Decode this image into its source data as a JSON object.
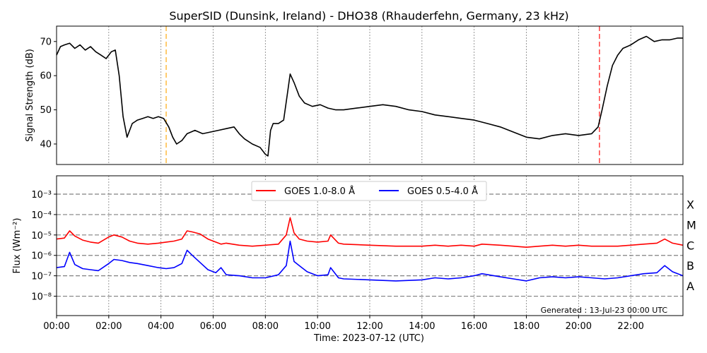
{
  "title": "SuperSID (Dunsink, Ireland) - DHO38 (Rhauderfehn, Germany, 23 kHz)",
  "footer_note": "Generated : 13-Jul-23 00:00 UTC",
  "colors": {
    "signal": "#000000",
    "goes_long": "#ff0000",
    "goes_short": "#0000ff",
    "sunrise_marker": "#ffa500",
    "sunset_marker": "#ff0000",
    "grid": "#808080"
  },
  "chart_data": [
    {
      "type": "line",
      "panel": "signal",
      "ylabel": "Signal Strength (dB)",
      "xlim": [
        0,
        24
      ],
      "ylim": [
        34,
        74.5
      ],
      "yticks": [
        40,
        50,
        60,
        70
      ],
      "xgrid_hours": [
        2,
        4,
        6,
        8,
        10,
        12,
        14,
        16,
        18,
        20,
        22
      ],
      "markers": [
        {
          "x": 4.2,
          "color": "#ffa500",
          "style": "dashed"
        },
        {
          "x": 20.8,
          "color": "#ff0000",
          "style": "dashed"
        }
      ],
      "series": [
        {
          "color": "#000000",
          "x": [
            0,
            0.15,
            0.3,
            0.5,
            0.7,
            0.9,
            1.1,
            1.3,
            1.5,
            1.7,
            1.9,
            2.1,
            2.25,
            2.4,
            2.55,
            2.7,
            2.8,
            2.9,
            3.0,
            3.1,
            3.3,
            3.5,
            3.7,
            3.9,
            4.1,
            4.3,
            4.45,
            4.6,
            4.8,
            5.0,
            5.3,
            5.6,
            5.9,
            6.2,
            6.5,
            6.8,
            7.0,
            7.2,
            7.5,
            7.8,
            8.0,
            8.1,
            8.2,
            8.3,
            8.5,
            8.7,
            8.85,
            8.95,
            9.1,
            9.3,
            9.5,
            9.8,
            10.1,
            10.4,
            10.7,
            11.0,
            11.5,
            12.0,
            12.5,
            13.0,
            13.5,
            14.0,
            14.5,
            15.0,
            15.5,
            16.0,
            16.5,
            17.0,
            17.5,
            18.0,
            18.5,
            19.0,
            19.5,
            20.0,
            20.5,
            20.75,
            20.9,
            21.1,
            21.3,
            21.5,
            21.7,
            22.0,
            22.3,
            22.6,
            22.9,
            23.2,
            23.5,
            23.8,
            24.0
          ],
          "values": [
            66,
            68.5,
            69,
            69.5,
            68,
            69,
            67.5,
            68.5,
            67,
            66,
            65,
            67,
            67.5,
            60,
            48,
            42,
            44,
            46,
            46.5,
            47,
            47.5,
            48,
            47.5,
            48,
            47.5,
            45,
            42,
            40,
            41,
            43,
            44,
            43,
            43.5,
            44,
            44.5,
            45,
            43,
            41.5,
            40,
            39,
            37,
            36.5,
            44,
            46,
            46,
            47,
            55,
            60.5,
            58,
            54,
            52,
            51,
            51.5,
            50.5,
            50,
            50,
            50.5,
            51,
            51.5,
            51,
            50,
            49.5,
            48.5,
            48,
            47.5,
            47,
            46,
            45,
            43.5,
            42,
            41.5,
            42.5,
            43,
            42.5,
            43,
            45,
            50,
            57,
            63,
            66,
            68,
            69,
            70.5,
            71.5,
            70,
            70.5,
            70.5,
            71,
            71
          ]
        }
      ]
    },
    {
      "type": "line",
      "panel": "flux",
      "ylabel": "Flux (Wm⁻²)",
      "xlabel": "Time: 2023-07-12 (UTC)",
      "xlim": [
        0,
        24
      ],
      "ylim_log10": [
        -8.95,
        -2.1
      ],
      "yticks": [
        "10⁻⁸",
        "10⁻⁷",
        "10⁻⁶",
        "10⁻⁵",
        "10⁻⁴",
        "10⁻³"
      ],
      "ytick_exponents": [
        -8,
        -7,
        -6,
        -5,
        -4,
        -3
      ],
      "class_levels_log10": [
        -8,
        -7,
        -6,
        -5,
        -4,
        -3
      ],
      "class_labels": [
        "A",
        "B",
        "C",
        "M",
        "X"
      ],
      "class_label_exponents": [
        -7.5,
        -6.5,
        -5.5,
        -4.5,
        -3.5
      ],
      "xticks": [
        "00:00",
        "02:00",
        "04:00",
        "06:00",
        "08:00",
        "10:00",
        "12:00",
        "14:00",
        "16:00",
        "18:00",
        "20:00",
        "22:00"
      ],
      "xtick_hours": [
        0,
        2,
        4,
        6,
        8,
        10,
        12,
        14,
        16,
        18,
        20,
        22
      ],
      "legend": {
        "placement": "top-center",
        "entries": [
          "GOES 1.0-8.0 Å",
          "GOES 0.5-4.0 Å"
        ]
      },
      "series": [
        {
          "name": "GOES 1.0-8.0 Å",
          "color": "#ff0000",
          "x": [
            0,
            0.3,
            0.5,
            0.7,
            1.0,
            1.3,
            1.6,
            2.0,
            2.2,
            2.5,
            2.8,
            3.1,
            3.5,
            3.9,
            4.2,
            4.5,
            4.8,
            5.0,
            5.2,
            5.5,
            5.8,
            6.1,
            6.3,
            6.5,
            7.0,
            7.5,
            8.0,
            8.5,
            8.8,
            8.95,
            9.1,
            9.3,
            9.6,
            10.0,
            10.4,
            10.5,
            10.8,
            11.0,
            12.0,
            13.0,
            14.0,
            14.5,
            15.0,
            15.5,
            16.0,
            16.3,
            17.0,
            17.5,
            18.0,
            18.5,
            19.0,
            19.5,
            20.0,
            20.5,
            21.0,
            21.5,
            22.0,
            22.5,
            23.0,
            23.3,
            23.6,
            24.0
          ],
          "values_log10": [
            -5.2,
            -5.15,
            -4.8,
            -5.05,
            -5.25,
            -5.35,
            -5.4,
            -5.1,
            -5.0,
            -5.1,
            -5.3,
            -5.4,
            -5.45,
            -5.4,
            -5.35,
            -5.3,
            -5.2,
            -4.8,
            -4.85,
            -4.95,
            -5.2,
            -5.35,
            -5.45,
            -5.4,
            -5.5,
            -5.55,
            -5.5,
            -5.45,
            -5.0,
            -4.15,
            -4.9,
            -5.2,
            -5.3,
            -5.35,
            -5.3,
            -5.0,
            -5.4,
            -5.45,
            -5.5,
            -5.55,
            -5.55,
            -5.5,
            -5.55,
            -5.5,
            -5.55,
            -5.45,
            -5.5,
            -5.55,
            -5.6,
            -5.55,
            -5.5,
            -5.55,
            -5.5,
            -5.55,
            -5.55,
            -5.55,
            -5.5,
            -5.45,
            -5.4,
            -5.2,
            -5.4,
            -5.5
          ]
        },
        {
          "name": "GOES 0.5-4.0 Å",
          "color": "#0000ff",
          "x": [
            0,
            0.3,
            0.5,
            0.7,
            1.0,
            1.3,
            1.6,
            2.0,
            2.2,
            2.5,
            2.8,
            3.1,
            3.5,
            3.9,
            4.2,
            4.5,
            4.8,
            5.0,
            5.2,
            5.5,
            5.8,
            6.1,
            6.3,
            6.5,
            7.0,
            7.5,
            8.0,
            8.5,
            8.8,
            8.95,
            9.1,
            9.3,
            9.6,
            10.0,
            10.4,
            10.5,
            10.8,
            11.0,
            12.0,
            13.0,
            14.0,
            14.5,
            15.0,
            15.5,
            16.0,
            16.3,
            17.0,
            17.5,
            18.0,
            18.5,
            19.0,
            19.5,
            20.0,
            20.5,
            21.0,
            21.5,
            22.0,
            22.5,
            23.0,
            23.3,
            23.6,
            24.0
          ],
          "values_log10": [
            -6.6,
            -6.55,
            -5.85,
            -6.45,
            -6.65,
            -6.7,
            -6.75,
            -6.4,
            -6.2,
            -6.25,
            -6.35,
            -6.4,
            -6.5,
            -6.6,
            -6.65,
            -6.6,
            -6.4,
            -5.75,
            -6.0,
            -6.35,
            -6.7,
            -6.85,
            -6.6,
            -6.95,
            -7.0,
            -7.1,
            -7.1,
            -6.95,
            -6.5,
            -5.3,
            -6.3,
            -6.5,
            -6.8,
            -7.0,
            -6.95,
            -6.6,
            -7.1,
            -7.15,
            -7.2,
            -7.25,
            -7.2,
            -7.1,
            -7.15,
            -7.1,
            -7.0,
            -6.9,
            -7.05,
            -7.15,
            -7.25,
            -7.1,
            -7.05,
            -7.1,
            -7.05,
            -7.1,
            -7.15,
            -7.1,
            -7.0,
            -6.9,
            -6.85,
            -6.5,
            -6.8,
            -7.0
          ]
        }
      ]
    }
  ]
}
